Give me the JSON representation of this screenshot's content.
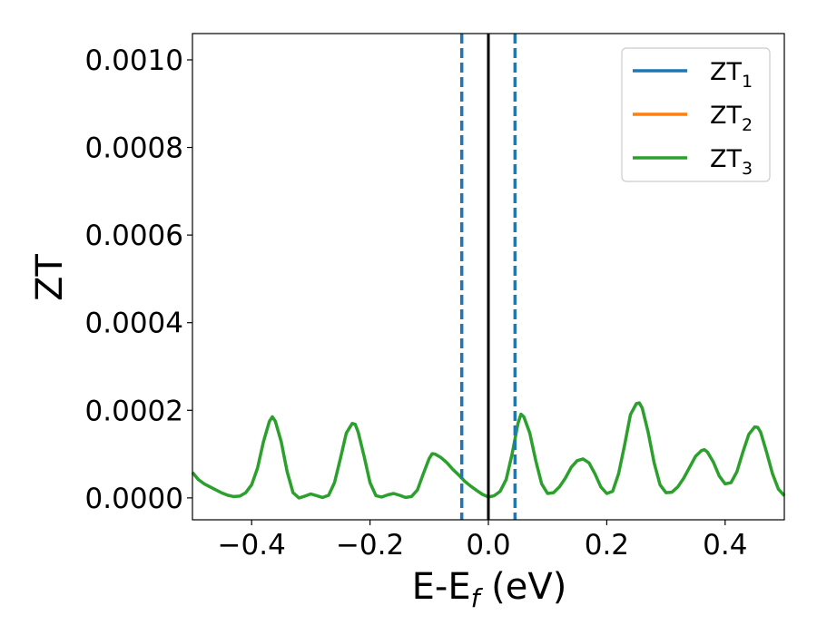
{
  "chart_data": {
    "type": "line",
    "xlabel": {
      "base": "E-E",
      "sub": "f",
      "unit": " (eV)"
    },
    "ylabel": "ZT",
    "xlim": [
      -0.5,
      0.5
    ],
    "ylim": [
      -5e-05,
      0.00106
    ],
    "xticks": [
      -0.4,
      -0.2,
      0.0,
      0.2,
      0.4
    ],
    "xtick_labels": [
      "−0.4",
      "−0.2",
      "0.0",
      "0.2",
      "0.4"
    ],
    "yticks": [
      0.0,
      0.0002,
      0.0004,
      0.0006,
      0.0008,
      0.001
    ],
    "ytick_labels": [
      "0.0000",
      "0.0002",
      "0.0004",
      "0.0006",
      "0.0008",
      "0.0010"
    ],
    "grid": false,
    "legend_position": "top-right",
    "series": [
      {
        "name": "ZT",
        "sub": "1",
        "color": "#1f77b4",
        "points": []
      },
      {
        "name": "ZT",
        "sub": "2",
        "color": "#ff7f0e",
        "points": []
      },
      {
        "name": "ZT",
        "sub": "3",
        "color": "#2ca02c",
        "points": [
          [
            -0.5,
            5.8e-05
          ],
          [
            -0.49,
            4.2e-05
          ],
          [
            -0.48,
            3.2e-05
          ],
          [
            -0.47,
            2.5e-05
          ],
          [
            -0.46,
            1.8e-05
          ],
          [
            -0.45,
            1.1e-05
          ],
          [
            -0.44,
            6e-06
          ],
          [
            -0.43,
            3e-06
          ],
          [
            -0.42,
            4e-06
          ],
          [
            -0.41,
            1.2e-05
          ],
          [
            -0.4,
            3e-05
          ],
          [
            -0.39,
            6.8e-05
          ],
          [
            -0.38,
            0.000128
          ],
          [
            -0.37,
            0.000175
          ],
          [
            -0.365,
            0.000185
          ],
          [
            -0.36,
            0.000175
          ],
          [
            -0.35,
            0.000128
          ],
          [
            -0.34,
            6e-05
          ],
          [
            -0.33,
            1.2e-05
          ],
          [
            -0.32,
            0.0
          ],
          [
            -0.31,
            4e-06
          ],
          [
            -0.3,
            9e-06
          ],
          [
            -0.29,
            5e-06
          ],
          [
            -0.28,
            1e-06
          ],
          [
            -0.27,
            6e-06
          ],
          [
            -0.26,
            3.5e-05
          ],
          [
            -0.25,
            9e-05
          ],
          [
            -0.24,
            0.000148
          ],
          [
            -0.23,
            0.00017
          ],
          [
            -0.225,
            0.000168
          ],
          [
            -0.22,
            0.00015
          ],
          [
            -0.21,
            9.5e-05
          ],
          [
            -0.2,
            3.5e-05
          ],
          [
            -0.19,
            5e-06
          ],
          [
            -0.18,
            2e-06
          ],
          [
            -0.17,
            7e-06
          ],
          [
            -0.16,
            1e-05
          ],
          [
            -0.15,
            6e-06
          ],
          [
            -0.14,
            1e-06
          ],
          [
            -0.13,
            3e-06
          ],
          [
            -0.12,
            1.8e-05
          ],
          [
            -0.11,
            5.5e-05
          ],
          [
            -0.1,
            9e-05
          ],
          [
            -0.095,
            0.000101
          ],
          [
            -0.09,
            0.0001
          ],
          [
            -0.08,
            9.2e-05
          ],
          [
            -0.07,
            8e-05
          ],
          [
            -0.06,
            6.5e-05
          ],
          [
            -0.05,
            5.2e-05
          ],
          [
            -0.04,
            3.8e-05
          ],
          [
            -0.03,
            2.7e-05
          ],
          [
            -0.02,
            1.7e-05
          ],
          [
            -0.01,
            8e-06
          ],
          [
            0.0,
            2e-06
          ],
          [
            0.01,
            5e-06
          ],
          [
            0.02,
            1.5e-05
          ],
          [
            0.03,
            4.2e-05
          ],
          [
            0.04,
            0.0001
          ],
          [
            0.05,
            0.00017
          ],
          [
            0.055,
            0.000191
          ],
          [
            0.06,
            0.000185
          ],
          [
            0.07,
            0.000148
          ],
          [
            0.08,
            8.5e-05
          ],
          [
            0.09,
            3.2e-05
          ],
          [
            0.1,
            1e-05
          ],
          [
            0.11,
            1.2e-05
          ],
          [
            0.12,
            2.5e-05
          ],
          [
            0.13,
            4.5e-05
          ],
          [
            0.14,
            7e-05
          ],
          [
            0.15,
            8.5e-05
          ],
          [
            0.16,
            8.9e-05
          ],
          [
            0.17,
            8e-05
          ],
          [
            0.18,
            5.5e-05
          ],
          [
            0.19,
            2.5e-05
          ],
          [
            0.2,
            1e-05
          ],
          [
            0.21,
            1.5e-05
          ],
          [
            0.22,
            5.5e-05
          ],
          [
            0.23,
            0.00012
          ],
          [
            0.24,
            0.00019
          ],
          [
            0.25,
            0.000215
          ],
          [
            0.255,
            0.000217
          ],
          [
            0.26,
            0.000205
          ],
          [
            0.27,
            0.00015
          ],
          [
            0.28,
            8e-05
          ],
          [
            0.29,
            3e-05
          ],
          [
            0.3,
            1.2e-05
          ],
          [
            0.31,
            1.3e-05
          ],
          [
            0.32,
            2.5e-05
          ],
          [
            0.33,
            4.5e-05
          ],
          [
            0.34,
            7e-05
          ],
          [
            0.35,
            9.5e-05
          ],
          [
            0.36,
            0.000108
          ],
          [
            0.365,
            0.00011
          ],
          [
            0.37,
            0.000105
          ],
          [
            0.38,
            8.2e-05
          ],
          [
            0.39,
            5e-05
          ],
          [
            0.4,
            3.2e-05
          ],
          [
            0.41,
            3.5e-05
          ],
          [
            0.42,
            6e-05
          ],
          [
            0.43,
            0.000105
          ],
          [
            0.44,
            0.000145
          ],
          [
            0.45,
            0.000162
          ],
          [
            0.455,
            0.000161
          ],
          [
            0.46,
            0.00015
          ],
          [
            0.47,
            0.000105
          ],
          [
            0.48,
            5.5e-05
          ],
          [
            0.49,
            2e-05
          ],
          [
            0.5,
            5e-06
          ]
        ]
      }
    ],
    "reference_lines": [
      {
        "x": -0.045,
        "style": "dashed",
        "color": "#1f77b4"
      },
      {
        "x": 0.045,
        "style": "dashed",
        "color": "#1f77b4"
      },
      {
        "x": 0.0,
        "style": "solid",
        "color": "#000000"
      }
    ]
  }
}
